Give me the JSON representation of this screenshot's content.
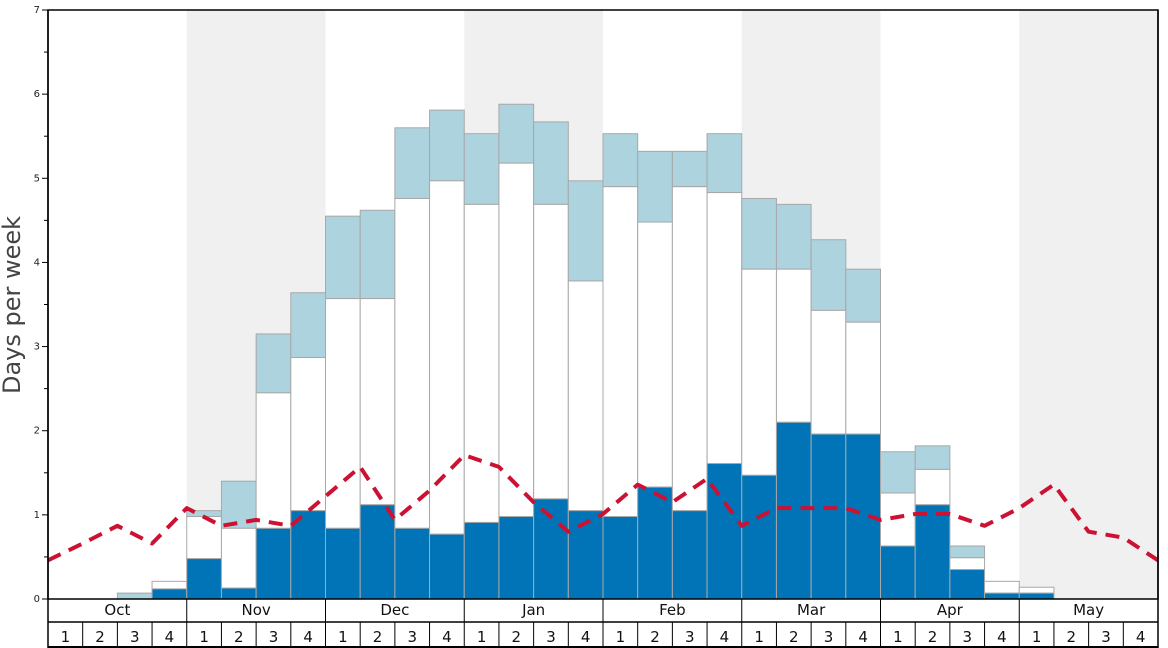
{
  "chart_data": {
    "type": "bar",
    "ylabel": "Days per week",
    "ylim": [
      0,
      7
    ],
    "yticks": [
      "0",
      "1",
      "2",
      "3",
      "4",
      "5",
      "6",
      "7"
    ],
    "months": [
      "Oct",
      "Nov",
      "Dec",
      "Jan",
      "Feb",
      "Mar",
      "Apr",
      "May"
    ],
    "weeks_per_month": [
      "1",
      "2",
      "3",
      "4"
    ],
    "shaded_months": [
      "Nov",
      "Jan",
      "Mar",
      "May"
    ],
    "colors": {
      "dark_segment": "#0074b7",
      "white_segment": "#ffffff",
      "light_segment": "#add3df",
      "bar_border": "#a8a8a8",
      "dashed_line": "#cc1133",
      "shade": "#f0f0f0",
      "frame": "#000000"
    },
    "categories": [
      "Oct 1",
      "Oct 2",
      "Oct 3",
      "Oct 4",
      "Nov 1",
      "Nov 2",
      "Nov 3",
      "Nov 4",
      "Dec 1",
      "Dec 2",
      "Dec 3",
      "Dec 4",
      "Jan 1",
      "Jan 2",
      "Jan 3",
      "Jan 4",
      "Feb 1",
      "Feb 2",
      "Feb 3",
      "Feb 4",
      "Mar 1",
      "Mar 2",
      "Mar 3",
      "Mar 4",
      "Apr 1",
      "Apr 2",
      "Apr 3",
      "Apr 4",
      "May 1",
      "May 2",
      "May 3",
      "May 4"
    ],
    "stack_levels": {
      "dark_top": [
        0,
        0,
        0,
        0.12,
        0.48,
        0.13,
        0.84,
        1.05,
        0.84,
        1.12,
        0.84,
        0.77,
        0.91,
        0.98,
        1.19,
        1.05,
        0.98,
        1.33,
        1.05,
        1.61,
        1.47,
        2.1,
        1.96,
        1.96,
        0.63,
        1.12,
        0.35,
        0.07,
        0.07,
        0,
        0,
        0
      ],
      "white_top": [
        0,
        0,
        0,
        0.21,
        0.98,
        0.84,
        2.45,
        2.87,
        3.57,
        3.57,
        4.76,
        4.97,
        4.69,
        5.18,
        4.69,
        3.78,
        4.9,
        4.48,
        4.9,
        4.83,
        3.92,
        3.92,
        3.43,
        3.29,
        1.26,
        1.54,
        0.49,
        0.21,
        0.14,
        0,
        0,
        0
      ],
      "light_top": [
        0,
        0,
        0.07,
        0.21,
        1.05,
        1.4,
        3.15,
        3.64,
        4.55,
        4.62,
        5.6,
        5.81,
        5.53,
        5.88,
        5.67,
        4.97,
        5.53,
        5.32,
        5.32,
        5.53,
        4.76,
        4.69,
        4.27,
        3.92,
        1.75,
        1.82,
        0.63,
        0.21,
        0.14,
        0,
        0,
        0
      ]
    },
    "dashed_line": [
      0.46,
      0.66,
      0.87,
      0.66,
      1.08,
      0.87,
      0.94,
      0.87,
      1.22,
      1.57,
      0.94,
      1.29,
      1.71,
      1.57,
      1.15,
      0.8,
      1.01,
      1.36,
      1.15,
      1.43,
      0.87,
      1.08,
      1.08,
      1.08,
      0.94,
      1.01,
      1.01,
      0.87,
      1.08,
      1.36,
      0.8,
      0.73,
      0.46
    ]
  }
}
